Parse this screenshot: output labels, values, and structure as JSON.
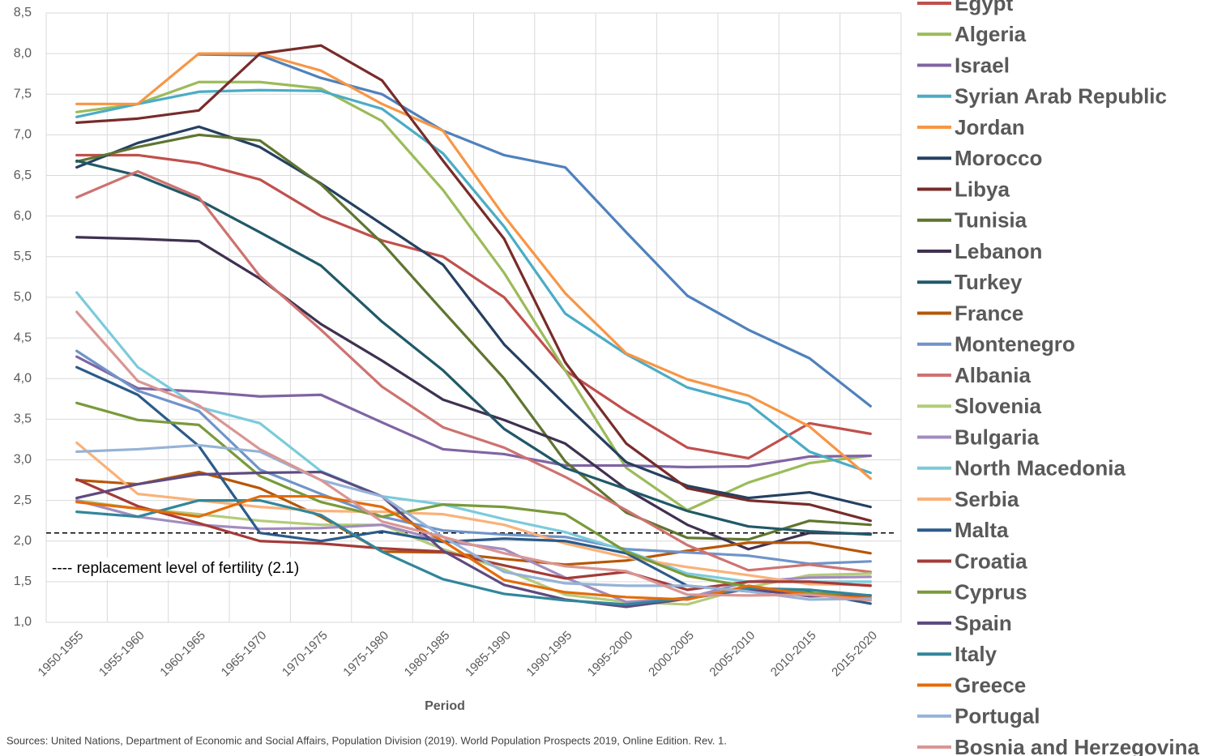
{
  "chart_data": {
    "type": "line",
    "x_label": "Period",
    "source": "Sources: United Nations, Department of Economic and Social Affairs, Population Division (2019). World Population Prospects 2019, Online Edition. Rev. 1.",
    "annotation": "---- replacement level of fertility (2.1)",
    "reference_line": 2.1,
    "grid": true,
    "legend": "right",
    "categories": [
      "1950-1955",
      "1955-1960",
      "1960-1965",
      "1965-1970",
      "1970-1975",
      "1975-1980",
      "1980-1985",
      "1985-1990",
      "1990-1995",
      "1995-2000",
      "2000-2005",
      "2005-2010",
      "2010-2015",
      "2015-2020"
    ],
    "ylim": [
      1.0,
      8.5
    ],
    "yticks": [
      {
        "value": 1.0,
        "label": "1,0"
      },
      {
        "value": 1.5,
        "label": "1,5"
      },
      {
        "value": 2.0,
        "label": "2,0"
      },
      {
        "value": 2.5,
        "label": "2,5"
      },
      {
        "value": 3.0,
        "label": "3,0"
      },
      {
        "value": 3.5,
        "label": "3,5"
      },
      {
        "value": 4.0,
        "label": "4,0"
      },
      {
        "value": 4.5,
        "label": "4,5"
      },
      {
        "value": 5.0,
        "label": "5,0"
      },
      {
        "value": 5.5,
        "label": "5,5"
      },
      {
        "value": 6.0,
        "label": "6,0"
      },
      {
        "value": 6.5,
        "label": "6,5"
      },
      {
        "value": 7.0,
        "label": "7,0"
      },
      {
        "value": 7.5,
        "label": "7,5"
      },
      {
        "value": 8.0,
        "label": "8,0"
      },
      {
        "value": 8.5,
        "label": "8,5"
      }
    ],
    "series": [
      {
        "color": "#4f81bd",
        "values": [
          null,
          null,
          7.99,
          7.98,
          7.7,
          7.5,
          7.05,
          6.75,
          6.6,
          5.8,
          5.02,
          4.6,
          4.25,
          3.66
        ]
      },
      {
        "name": "Egypt",
        "color": "#c0504d",
        "values": [
          6.75,
          6.75,
          6.65,
          6.45,
          6.0,
          5.7,
          5.5,
          5.0,
          4.1,
          3.6,
          3.15,
          3.02,
          3.45,
          3.32
        ]
      },
      {
        "name": "Algeria",
        "color": "#9bbb59",
        "values": [
          7.28,
          7.38,
          7.65,
          7.65,
          7.57,
          7.17,
          6.32,
          5.3,
          4.1,
          2.9,
          2.38,
          2.72,
          2.96,
          3.05
        ]
      },
      {
        "name": "Israel",
        "color": "#8064a2",
        "values": [
          4.27,
          3.88,
          3.84,
          3.78,
          3.8,
          3.46,
          3.13,
          3.07,
          2.93,
          2.93,
          2.91,
          2.92,
          3.04,
          3.05
        ]
      },
      {
        "name": "Syrian Arab Republic",
        "color": "#4bacc6",
        "values": [
          7.22,
          7.38,
          7.53,
          7.55,
          7.54,
          7.32,
          6.77,
          5.87,
          4.8,
          4.3,
          3.89,
          3.69,
          3.1,
          2.84
        ]
      },
      {
        "name": "Jordan",
        "color": "#f79646",
        "values": [
          7.38,
          7.38,
          8.0,
          8.0,
          7.79,
          7.38,
          7.05,
          6.0,
          5.05,
          4.31,
          3.99,
          3.79,
          3.41,
          2.77
        ]
      },
      {
        "name": "Morocco",
        "color": "#254061",
        "values": [
          6.6,
          6.9,
          7.1,
          6.85,
          6.4,
          5.9,
          5.4,
          4.42,
          3.68,
          2.97,
          2.68,
          2.53,
          2.6,
          2.42
        ]
      },
      {
        "name": "Libya",
        "color": "#772c2a",
        "values": [
          7.15,
          7.2,
          7.3,
          8.0,
          8.1,
          7.67,
          6.68,
          5.72,
          4.2,
          3.2,
          2.65,
          2.5,
          2.45,
          2.25
        ]
      },
      {
        "name": "Tunisia",
        "color": "#5f7530",
        "values": [
          6.67,
          6.85,
          7.0,
          6.93,
          6.39,
          5.67,
          4.83,
          4.0,
          2.98,
          2.35,
          2.04,
          2.02,
          2.25,
          2.2
        ]
      },
      {
        "name": "Lebanon",
        "color": "#3f3151",
        "values": [
          5.74,
          5.72,
          5.69,
          5.23,
          4.67,
          4.22,
          3.74,
          3.49,
          3.2,
          2.64,
          2.2,
          1.9,
          2.1,
          2.09
        ]
      },
      {
        "name": "Turkey",
        "color": "#215968",
        "values": [
          6.68,
          6.5,
          6.2,
          5.8,
          5.39,
          4.7,
          4.1,
          3.38,
          2.9,
          2.64,
          2.37,
          2.18,
          2.12,
          2.08
        ]
      },
      {
        "name": "France",
        "color": "#b65708",
        "values": [
          2.75,
          2.7,
          2.85,
          2.65,
          2.3,
          1.87,
          1.86,
          1.78,
          1.71,
          1.76,
          1.88,
          1.98,
          1.98,
          1.85
        ]
      },
      {
        "name": "Montenegro",
        "color": "#6f94c9",
        "values": [
          4.34,
          3.85,
          3.6,
          2.88,
          2.58,
          2.3,
          2.13,
          2.08,
          2.05,
          1.9,
          1.86,
          1.82,
          1.72,
          1.75
        ]
      },
      {
        "name": "Albania",
        "color": "#cd7371",
        "values": [
          6.23,
          6.55,
          6.23,
          5.26,
          4.6,
          3.9,
          3.4,
          3.15,
          2.79,
          2.38,
          1.95,
          1.64,
          1.71,
          1.62
        ]
      },
      {
        "name": "Slovenia",
        "color": "#b3cb7a",
        "values": [
          2.5,
          2.4,
          2.33,
          2.25,
          2.2,
          2.2,
          1.9,
          1.65,
          1.34,
          1.25,
          1.22,
          1.43,
          1.58,
          1.6
        ]
      },
      {
        "name": "Bulgaria",
        "color": "#a28cbf",
        "values": [
          2.5,
          2.3,
          2.2,
          2.15,
          2.16,
          2.2,
          2.0,
          1.9,
          1.55,
          1.25,
          1.3,
          1.5,
          1.55,
          1.56
        ]
      },
      {
        "name": "North Macedonia",
        "color": "#7bcbdb",
        "values": [
          5.06,
          4.14,
          3.65,
          3.45,
          2.86,
          2.55,
          2.45,
          2.27,
          2.11,
          1.88,
          1.6,
          1.5,
          1.5,
          1.5
        ]
      },
      {
        "name": "Serbia",
        "color": "#f9b27a",
        "values": [
          3.21,
          2.58,
          2.5,
          2.42,
          2.37,
          2.36,
          2.33,
          2.2,
          1.97,
          1.8,
          1.68,
          1.58,
          1.47,
          1.46
        ]
      },
      {
        "name": "Malta",
        "color": "#2c5b8a",
        "values": [
          4.14,
          3.8,
          3.17,
          2.1,
          2.0,
          2.12,
          1.99,
          2.03,
          2.0,
          1.85,
          1.45,
          1.38,
          1.37,
          1.23
        ]
      },
      {
        "name": "Croatia",
        "color": "#a33b39",
        "values": [
          2.76,
          2.43,
          2.22,
          2.0,
          1.97,
          1.91,
          1.87,
          1.7,
          1.54,
          1.62,
          1.4,
          1.5,
          1.5,
          1.45
        ]
      },
      {
        "name": "Cyprus",
        "color": "#7a9a3a",
        "values": [
          3.7,
          3.49,
          3.43,
          2.8,
          2.48,
          2.3,
          2.45,
          2.42,
          2.33,
          1.87,
          1.57,
          1.44,
          1.36,
          1.33
        ]
      },
      {
        "name": "Spain",
        "color": "#5e4a80",
        "values": [
          2.53,
          2.7,
          2.82,
          2.84,
          2.85,
          2.55,
          1.88,
          1.46,
          1.28,
          1.19,
          1.29,
          1.41,
          1.32,
          1.33
        ]
      },
      {
        "name": "Italy",
        "color": "#31869b",
        "values": [
          2.36,
          2.3,
          2.5,
          2.5,
          2.32,
          1.87,
          1.53,
          1.35,
          1.27,
          1.22,
          1.3,
          1.42,
          1.4,
          1.33
        ]
      },
      {
        "name": "Greece",
        "color": "#e46c0a",
        "values": [
          2.48,
          2.4,
          2.3,
          2.55,
          2.55,
          2.42,
          2.0,
          1.52,
          1.37,
          1.31,
          1.28,
          1.45,
          1.34,
          1.3
        ]
      },
      {
        "name": "Portugal",
        "color": "#95b3d7",
        "values": [
          3.1,
          3.13,
          3.18,
          3.1,
          2.75,
          2.55,
          2.05,
          1.62,
          1.48,
          1.45,
          1.45,
          1.38,
          1.28,
          1.29
        ]
      },
      {
        "name": "Bosnia and Herzegovina",
        "color": "#d99694",
        "values": [
          4.82,
          3.97,
          3.67,
          3.13,
          2.75,
          2.24,
          2.05,
          1.85,
          1.69,
          1.63,
          1.34,
          1.33,
          1.34,
          1.27
        ]
      }
    ]
  }
}
